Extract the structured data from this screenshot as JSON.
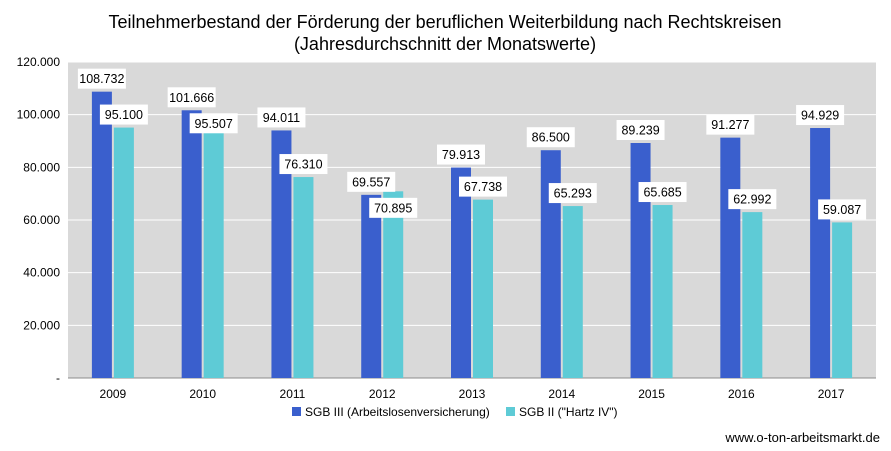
{
  "chart_data": {
    "type": "bar",
    "title": "Teilnehmerbestand der Förderung der beruflichen Weiterbildung nach Rechtskreisen",
    "subtitle": "(Jahresdurchschnitt der Monatswerte)",
    "categories": [
      "2009",
      "2010",
      "2011",
      "2012",
      "2013",
      "2014",
      "2015",
      "2016",
      "2017"
    ],
    "series": [
      {
        "name": "SGB III (Arbeitslosenversicherung)",
        "color": "#3a5fcd",
        "values": [
          108732,
          101666,
          94011,
          69557,
          79913,
          86500,
          89239,
          91277,
          94929
        ],
        "labels": [
          "108.732",
          "101.666",
          "94.011",
          "69.557",
          "79.913",
          "86.500",
          "89.239",
          "91.277",
          "94.929"
        ]
      },
      {
        "name": "SGB II (\"Hartz IV\")",
        "color": "#5ecbd6",
        "values": [
          95100,
          95507,
          76310,
          70895,
          67738,
          65293,
          65685,
          62992,
          59087
        ],
        "labels": [
          "95.100",
          "95.507",
          "76.310",
          "70.895",
          "67.738",
          "65.293",
          "65.685",
          "62.992",
          "59.087"
        ]
      }
    ],
    "y_ticks": [
      "-",
      "20.000",
      "40.000",
      "60.000",
      "80.000",
      "100.000",
      "120.000"
    ],
    "ylim": [
      0,
      120000
    ],
    "grid": true,
    "plot_background": "#d9d9d9",
    "legend_position": "bottom",
    "xlabel": "",
    "ylabel": ""
  },
  "source": "www.o-ton-arbeitsmarkt.de"
}
